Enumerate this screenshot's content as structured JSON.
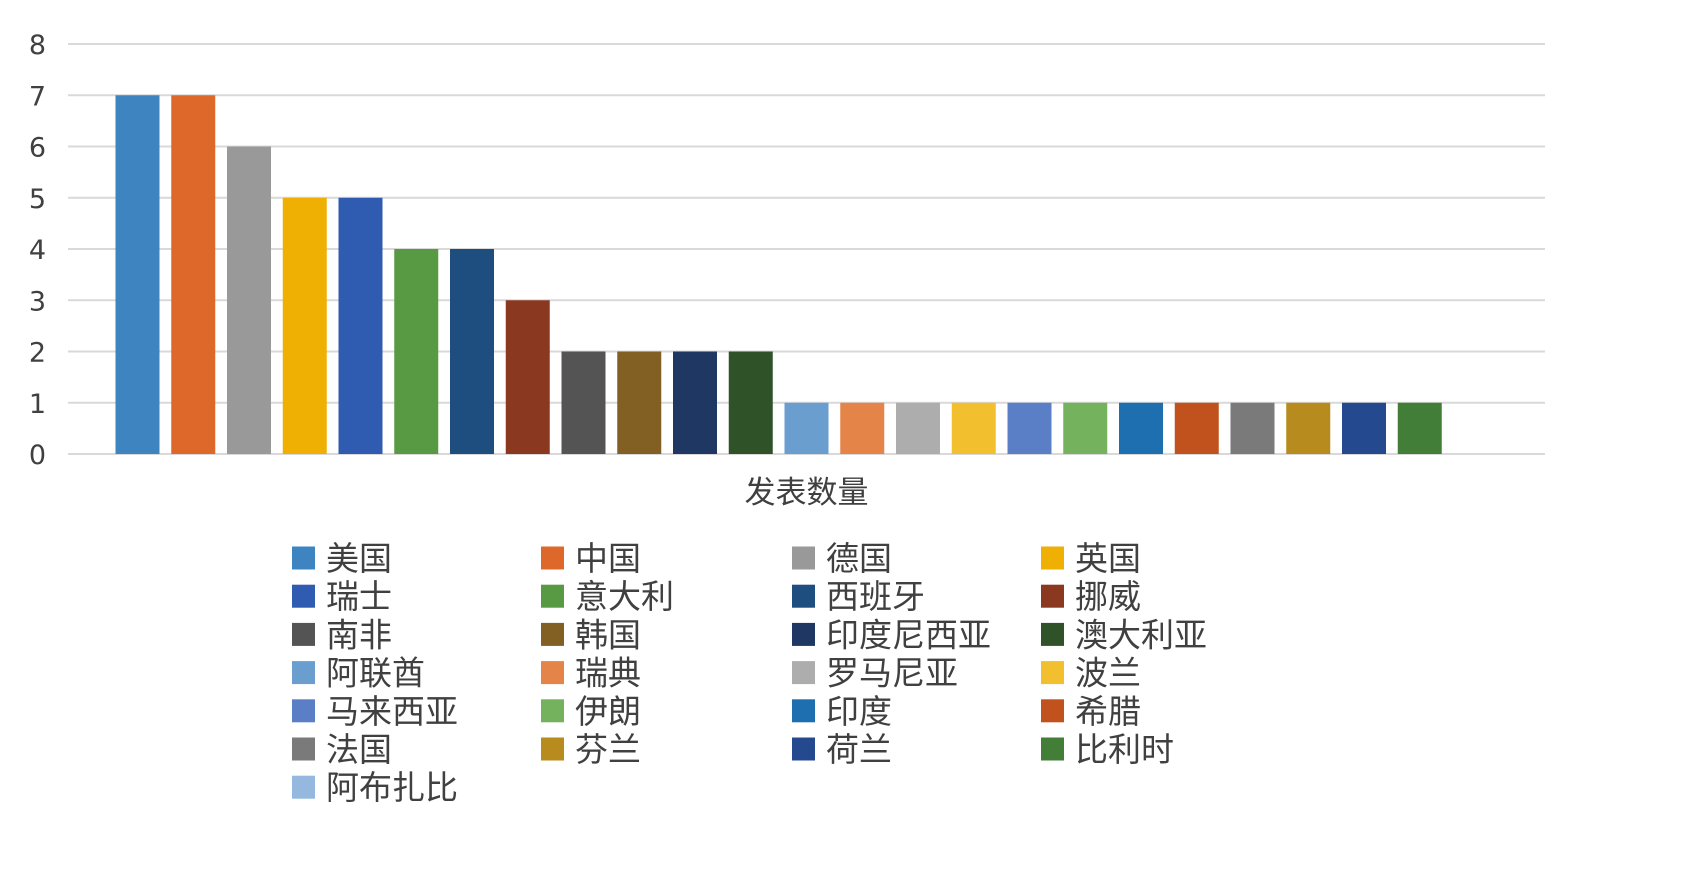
{
  "chart_data": {
    "type": "bar",
    "xlabel": "发表数量",
    "ylabel": "",
    "ylim": [
      0,
      8
    ],
    "yticks": [
      0,
      1,
      2,
      3,
      4,
      5,
      6,
      7,
      8
    ],
    "grid": true,
    "legend_position": "bottom",
    "series": [
      {
        "name": "美国",
        "value": 7,
        "color": "#3e84c0"
      },
      {
        "name": "中国",
        "value": 7,
        "color": "#dd6829"
      },
      {
        "name": "德国",
        "value": 6,
        "color": "#999999"
      },
      {
        "name": "英国",
        "value": 5,
        "color": "#efaf03"
      },
      {
        "name": "瑞士",
        "value": 5,
        "color": "#2f5bb0"
      },
      {
        "name": "意大利",
        "value": 4,
        "color": "#589a43"
      },
      {
        "name": "西班牙",
        "value": 4,
        "color": "#1d4e7f"
      },
      {
        "name": "挪威",
        "value": 3,
        "color": "#8a3820"
      },
      {
        "name": "南非",
        "value": 2,
        "color": "#545454"
      },
      {
        "name": "韩国",
        "value": 2,
        "color": "#826023"
      },
      {
        "name": "印度尼西亚",
        "value": 2,
        "color": "#1e3763"
      },
      {
        "name": "澳大利亚",
        "value": 2,
        "color": "#2f5229"
      },
      {
        "name": "阿联酋",
        "value": 1,
        "color": "#6a9ecf"
      },
      {
        "name": "瑞典",
        "value": 1,
        "color": "#e58448"
      },
      {
        "name": "罗马尼亚",
        "value": 1,
        "color": "#adadad"
      },
      {
        "name": "波兰",
        "value": 1,
        "color": "#f2bf2e"
      },
      {
        "name": "马来西亚",
        "value": 1,
        "color": "#5b7fc6"
      },
      {
        "name": "伊朗",
        "value": 1,
        "color": "#75b25e"
      },
      {
        "name": "印度",
        "value": 1,
        "color": "#1e6fb0"
      },
      {
        "name": "希腊",
        "value": 1,
        "color": "#c1521e"
      },
      {
        "name": "法国",
        "value": 1,
        "color": "#7a7a7a"
      },
      {
        "name": "芬兰",
        "value": 1,
        "color": "#b78b1d"
      },
      {
        "name": "荷兰",
        "value": 1,
        "color": "#25498f"
      },
      {
        "name": "比利时",
        "value": 1,
        "color": "#437e39"
      },
      {
        "name": "阿布扎比",
        "value": 0,
        "color": "#95b8de"
      }
    ]
  }
}
